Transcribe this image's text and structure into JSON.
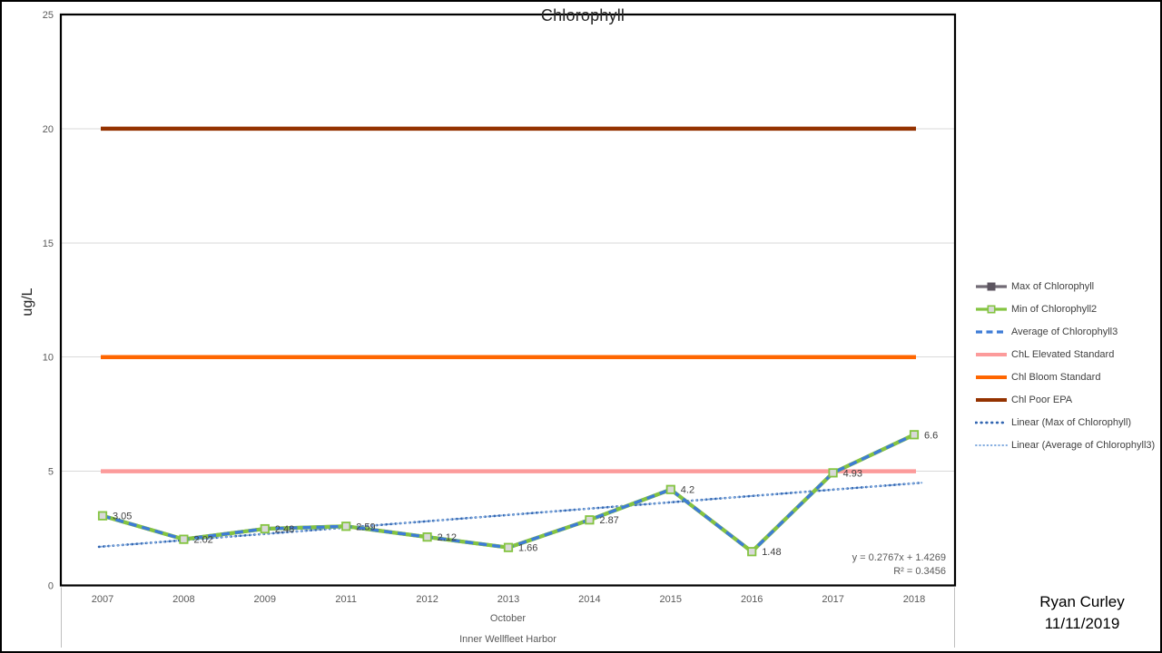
{
  "title": "Chlorophyll",
  "y_axis_label": "ug/L",
  "axis_sub_labels": {
    "month": "October",
    "site": "Inner Wellfleet Harbor"
  },
  "trend_annotation": {
    "equation": "y = 0.2767x + 1.4269",
    "r_squared": "R² = 0.3456"
  },
  "footer": {
    "author": "Ryan Curley",
    "date": "11/11/2019"
  },
  "colors": {
    "max_series": "#716A75",
    "min_series": "#84C441",
    "avg_series": "#3E7CD6",
    "elevated_standard": "#FC9B9B",
    "bloom_standard": "#FF6600",
    "poor_epa": "#943200",
    "linear_max": "#3265B1",
    "linear_avg": "#7EA9DE",
    "gridline": "#D9D9D9",
    "axis_text": "#595959",
    "label_text": "#404040",
    "marker_fill": "#D9D9D9"
  },
  "legend": [
    {
      "label": "Max of Chlorophyll",
      "style": "line-marker",
      "color": "#716A75",
      "marker_fill": "#5C5560",
      "marker_stroke": "#5C5560"
    },
    {
      "label": "Min of Chlorophyll2",
      "style": "line-marker",
      "color": "#84C441",
      "marker_fill": "#D9D9D9",
      "marker_stroke": "#84C441"
    },
    {
      "label": "Average of Chlorophyll3",
      "style": "dashed",
      "color": "#3E7CD6"
    },
    {
      "label": "ChL Elevated Standard",
      "style": "solid",
      "color": "#FC9B9B"
    },
    {
      "label": "Chl Bloom Standard",
      "style": "solid",
      "color": "#FF6600"
    },
    {
      "label": "Chl Poor EPA",
      "style": "solid",
      "color": "#943200"
    },
    {
      "label": "Linear (Max of Chlorophyll)",
      "style": "dotted-large",
      "color": "#3265B1"
    },
    {
      "label": "Linear (Average of Chlorophyll3)",
      "style": "dotted-small",
      "color": "#7EA9DE"
    }
  ],
  "chart_data": {
    "type": "line",
    "title": "Chlorophyll",
    "xlabel": "October / Inner Wellfleet Harbor",
    "ylabel": "ug/L",
    "ylim": [
      0,
      25
    ],
    "y_ticks": [
      0,
      5,
      10,
      15,
      20,
      25
    ],
    "grid": true,
    "legend_position": "right",
    "categories": [
      "2007",
      "2008",
      "2009",
      "2011",
      "2012",
      "2013",
      "2014",
      "2015",
      "2016",
      "2017",
      "2018"
    ],
    "series": [
      {
        "name": "Max of Chlorophyll",
        "values": [
          3.05,
          2.02,
          2.48,
          2.59,
          2.12,
          1.66,
          2.87,
          4.2,
          1.48,
          4.93,
          6.6
        ]
      },
      {
        "name": "Min of Chlorophyll2",
        "values": [
          3.05,
          2.02,
          2.48,
          2.59,
          2.12,
          1.66,
          2.87,
          4.2,
          1.48,
          4.93,
          6.6
        ]
      },
      {
        "name": "Average of Chlorophyll3",
        "values": [
          3.05,
          2.02,
          2.48,
          2.59,
          2.12,
          1.66,
          2.87,
          4.2,
          1.48,
          4.93,
          6.6
        ]
      }
    ],
    "data_labels": [
      "3.05",
      "2.02",
      "2.48",
      "2.59",
      "2.12",
      "1.66",
      "2.87",
      "4.2",
      "1.48",
      "4.93",
      "6.6"
    ],
    "reference_lines": [
      {
        "name": "ChL Elevated Standard",
        "value": 5
      },
      {
        "name": "Chl Bloom Standard",
        "value": 10
      },
      {
        "name": "Chl Poor EPA",
        "value": 20
      }
    ],
    "trendlines": [
      {
        "name": "Linear (Max of Chlorophyll)",
        "slope": 0.2767,
        "intercept": 1.4269,
        "r_squared": 0.3456
      },
      {
        "name": "Linear (Average of Chlorophyll3)",
        "slope": 0.2767,
        "intercept": 1.4269,
        "r_squared": 0.3456
      }
    ]
  }
}
